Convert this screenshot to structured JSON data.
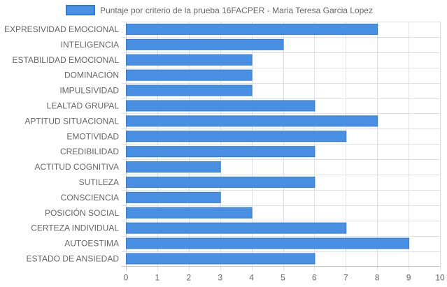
{
  "chart_data": {
    "type": "bar",
    "orientation": "horizontal",
    "categories": [
      "EXPRESIVIDAD EMOCIONAL",
      "INTELIGENCIA",
      "ESTABILIDAD EMOCIONAL",
      "DOMINACIÓN",
      "IMPULSIVIDAD",
      "LEALTAD GRUPAL",
      "APTITUD SITUACIONAL",
      "EMOTIVIDAD",
      "CREDIBILIDAD",
      "ACTITUD COGNITIVA",
      "SUTILEZA",
      "CONSCIENCIA",
      "POSICIÓN SOCIAL",
      "CERTEZA INDIVIDUAL",
      "AUTOESTIMA",
      "ESTADO DE ANSIEDAD"
    ],
    "series": [
      {
        "name": "Puntaje por criterio de la prueba 16FACPER - Maria Teresa Garcia Lopez",
        "values": [
          8,
          5,
          4,
          4,
          4,
          6,
          8,
          7,
          6,
          3,
          6,
          3,
          4,
          7,
          9,
          6
        ],
        "color": "#4a90e2",
        "border_color": "#2d7be0"
      }
    ],
    "xlim": [
      0,
      10
    ],
    "x_ticks": [
      0,
      1,
      2,
      3,
      4,
      5,
      6,
      7,
      8,
      9,
      10
    ],
    "grid": true,
    "legend": "top"
  }
}
